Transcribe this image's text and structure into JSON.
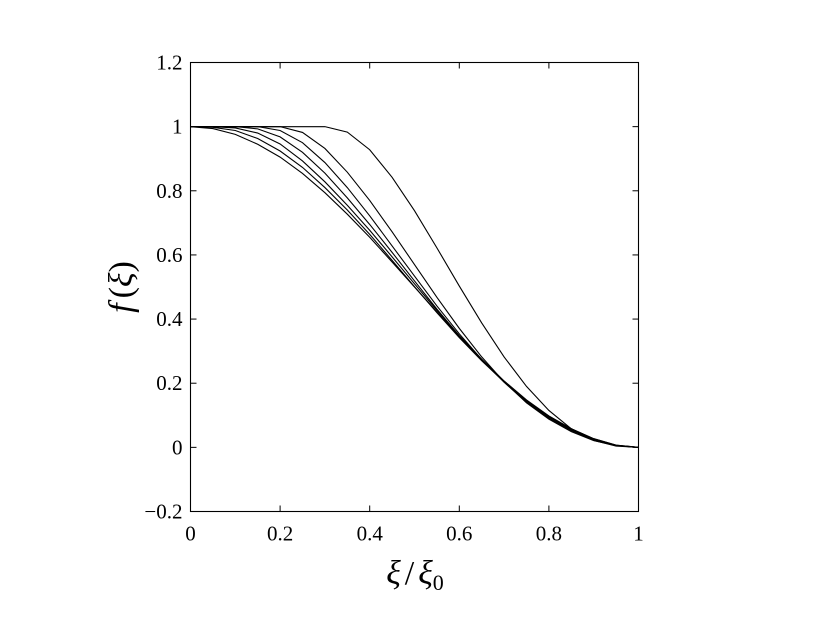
{
  "chart_data": {
    "type": "line",
    "title": "",
    "xlabel": "ξ / ξ0",
    "ylabel": "f (ξ)",
    "xlim": [
      0,
      1
    ],
    "ylim": [
      -0.2,
      1.2
    ],
    "x_ticks": [
      0,
      0.2,
      0.4,
      0.6,
      0.8,
      1
    ],
    "y_ticks": [
      -0.2,
      0,
      0.2,
      0.4,
      0.6,
      0.8,
      1,
      1.2
    ],
    "x_tick_labels": [
      "0",
      "0.2",
      "0.4",
      "0.6",
      "0.8",
      "1"
    ],
    "y_tick_labels": [
      "−0.2",
      "0",
      "0.2",
      "0.4",
      "0.6",
      "0.8",
      "1",
      "1.2"
    ],
    "grid": false,
    "line_color": "#000000",
    "x": [
      0,
      0.05,
      0.1,
      0.15,
      0.2,
      0.25,
      0.3,
      0.35,
      0.4,
      0.45,
      0.5,
      0.55,
      0.6,
      0.65,
      0.7,
      0.75,
      0.8,
      0.85,
      0.9,
      0.95,
      1
    ],
    "series": [
      {
        "values": [
          1,
          0.994,
          0.976,
          0.945,
          0.905,
          0.854,
          0.794,
          0.727,
          0.655,
          0.578,
          0.5,
          0.422,
          0.345,
          0.273,
          0.206,
          0.146,
          0.095,
          0.055,
          0.024,
          0.006,
          0
        ]
      },
      {
        "values": [
          1,
          0.998,
          0.988,
          0.963,
          0.924,
          0.873,
          0.81,
          0.74,
          0.664,
          0.583,
          0.501,
          0.42,
          0.342,
          0.27,
          0.204,
          0.146,
          0.097,
          0.058,
          0.027,
          0.007,
          0
        ]
      },
      {
        "values": [
          1,
          1,
          0.996,
          0.98,
          0.946,
          0.893,
          0.828,
          0.755,
          0.677,
          0.594,
          0.51,
          0.427,
          0.348,
          0.275,
          0.207,
          0.148,
          0.098,
          0.058,
          0.027,
          0.007,
          0
        ]
      },
      {
        "values": [
          1,
          1,
          1,
          0.993,
          0.968,
          0.92,
          0.855,
          0.778,
          0.695,
          0.608,
          0.519,
          0.431,
          0.348,
          0.273,
          0.204,
          0.144,
          0.094,
          0.055,
          0.025,
          0.006,
          0
        ]
      },
      {
        "values": [
          1,
          1,
          1,
          1,
          0.988,
          0.95,
          0.888,
          0.81,
          0.722,
          0.628,
          0.534,
          0.441,
          0.354,
          0.274,
          0.203,
          0.141,
          0.091,
          0.052,
          0.023,
          0.006,
          0
        ]
      },
      {
        "values": [
          1,
          1,
          1,
          1,
          1,
          0.982,
          0.932,
          0.858,
          0.77,
          0.672,
          0.57,
          0.468,
          0.371,
          0.282,
          0.204,
          0.139,
          0.088,
          0.049,
          0.021,
          0.005,
          0
        ]
      },
      {
        "values": [
          1,
          1,
          1,
          1,
          1,
          1,
          1,
          0.983,
          0.928,
          0.842,
          0.738,
          0.622,
          0.503,
          0.388,
          0.282,
          0.19,
          0.115,
          0.058,
          0.022,
          0.004,
          0
        ]
      }
    ]
  }
}
